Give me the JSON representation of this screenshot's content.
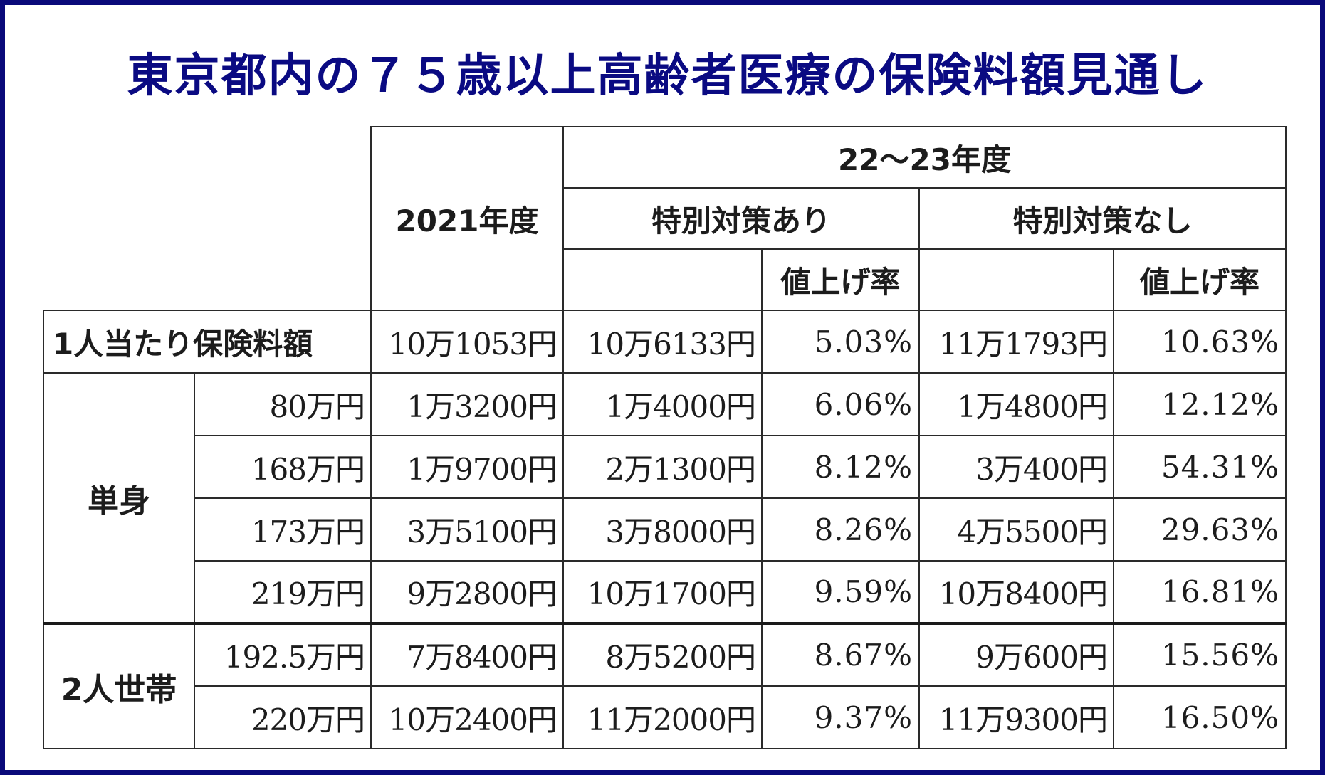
{
  "title": "東京都内の７５歳以上高齢者医療の保険料額見通し",
  "colors": {
    "title": "#0a0a82",
    "frame": "#0a0a7a"
  },
  "header": {
    "year_2021": "2021年度",
    "year_22_23": "22〜23年度",
    "with_measures": "特別対策あり",
    "without_measures": "特別対策なし",
    "increase_rate": "値上げ率"
  },
  "per_person": {
    "label": "1人当たり保険料額",
    "y2021": "10万1053円",
    "with": "10万6133円",
    "with_rate": "5.03%",
    "without": "11万1793円",
    "without_rate": "10.63%"
  },
  "single": {
    "label": "単身",
    "rows": [
      {
        "income": "80万円",
        "y2021": "1万3200円",
        "with": "1万4000円",
        "with_rate": "6.06%",
        "without": "1万4800円",
        "without_rate": "12.12%"
      },
      {
        "income": "168万円",
        "y2021": "1万9700円",
        "with": "2万1300円",
        "with_rate": "8.12%",
        "without": "3万400円",
        "without_rate": "54.31%"
      },
      {
        "income": "173万円",
        "y2021": "3万5100円",
        "with": "3万8000円",
        "with_rate": "8.26%",
        "without": "4万5500円",
        "without_rate": "29.63%"
      },
      {
        "income": "219万円",
        "y2021": "9万2800円",
        "with": "10万1700円",
        "with_rate": "9.59%",
        "without": "10万8400円",
        "without_rate": "16.81%"
      }
    ]
  },
  "couple": {
    "label": "2人世帯",
    "rows": [
      {
        "income": "192.5万円",
        "y2021": "7万8400円",
        "with": "8万5200円",
        "with_rate": "8.67%",
        "without": "9万600円",
        "without_rate": "15.56%"
      },
      {
        "income": "220万円",
        "y2021": "10万2400円",
        "with": "11万2000円",
        "with_rate": "9.37%",
        "without": "11万9300円",
        "without_rate": "16.50%"
      }
    ]
  }
}
